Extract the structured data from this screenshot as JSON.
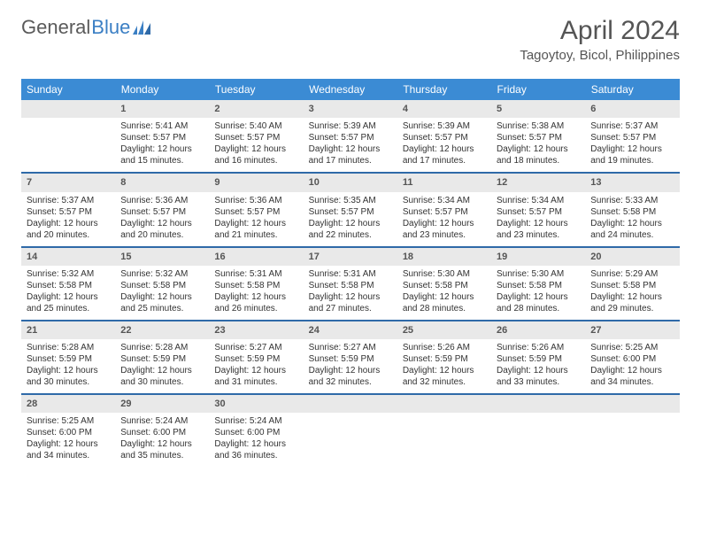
{
  "logo": {
    "text1": "General",
    "text2": "Blue"
  },
  "title": "April 2024",
  "location": "Tagoytoy, Bicol, Philippines",
  "colors": {
    "header_bg": "#3b8bd4",
    "header_text": "#ffffff",
    "row_border": "#2f6aa8",
    "daynum_bg": "#e9e9e9",
    "logo_blue": "#3b7fc4"
  },
  "weekdays": [
    "Sunday",
    "Monday",
    "Tuesday",
    "Wednesday",
    "Thursday",
    "Friday",
    "Saturday"
  ],
  "weeks": [
    [
      null,
      {
        "n": "1",
        "sr": "Sunrise: 5:41 AM",
        "ss": "Sunset: 5:57 PM",
        "d1": "Daylight: 12 hours",
        "d2": "and 15 minutes."
      },
      {
        "n": "2",
        "sr": "Sunrise: 5:40 AM",
        "ss": "Sunset: 5:57 PM",
        "d1": "Daylight: 12 hours",
        "d2": "and 16 minutes."
      },
      {
        "n": "3",
        "sr": "Sunrise: 5:39 AM",
        "ss": "Sunset: 5:57 PM",
        "d1": "Daylight: 12 hours",
        "d2": "and 17 minutes."
      },
      {
        "n": "4",
        "sr": "Sunrise: 5:39 AM",
        "ss": "Sunset: 5:57 PM",
        "d1": "Daylight: 12 hours",
        "d2": "and 17 minutes."
      },
      {
        "n": "5",
        "sr": "Sunrise: 5:38 AM",
        "ss": "Sunset: 5:57 PM",
        "d1": "Daylight: 12 hours",
        "d2": "and 18 minutes."
      },
      {
        "n": "6",
        "sr": "Sunrise: 5:37 AM",
        "ss": "Sunset: 5:57 PM",
        "d1": "Daylight: 12 hours",
        "d2": "and 19 minutes."
      }
    ],
    [
      {
        "n": "7",
        "sr": "Sunrise: 5:37 AM",
        "ss": "Sunset: 5:57 PM",
        "d1": "Daylight: 12 hours",
        "d2": "and 20 minutes."
      },
      {
        "n": "8",
        "sr": "Sunrise: 5:36 AM",
        "ss": "Sunset: 5:57 PM",
        "d1": "Daylight: 12 hours",
        "d2": "and 20 minutes."
      },
      {
        "n": "9",
        "sr": "Sunrise: 5:36 AM",
        "ss": "Sunset: 5:57 PM",
        "d1": "Daylight: 12 hours",
        "d2": "and 21 minutes."
      },
      {
        "n": "10",
        "sr": "Sunrise: 5:35 AM",
        "ss": "Sunset: 5:57 PM",
        "d1": "Daylight: 12 hours",
        "d2": "and 22 minutes."
      },
      {
        "n": "11",
        "sr": "Sunrise: 5:34 AM",
        "ss": "Sunset: 5:57 PM",
        "d1": "Daylight: 12 hours",
        "d2": "and 23 minutes."
      },
      {
        "n": "12",
        "sr": "Sunrise: 5:34 AM",
        "ss": "Sunset: 5:57 PM",
        "d1": "Daylight: 12 hours",
        "d2": "and 23 minutes."
      },
      {
        "n": "13",
        "sr": "Sunrise: 5:33 AM",
        "ss": "Sunset: 5:58 PM",
        "d1": "Daylight: 12 hours",
        "d2": "and 24 minutes."
      }
    ],
    [
      {
        "n": "14",
        "sr": "Sunrise: 5:32 AM",
        "ss": "Sunset: 5:58 PM",
        "d1": "Daylight: 12 hours",
        "d2": "and 25 minutes."
      },
      {
        "n": "15",
        "sr": "Sunrise: 5:32 AM",
        "ss": "Sunset: 5:58 PM",
        "d1": "Daylight: 12 hours",
        "d2": "and 25 minutes."
      },
      {
        "n": "16",
        "sr": "Sunrise: 5:31 AM",
        "ss": "Sunset: 5:58 PM",
        "d1": "Daylight: 12 hours",
        "d2": "and 26 minutes."
      },
      {
        "n": "17",
        "sr": "Sunrise: 5:31 AM",
        "ss": "Sunset: 5:58 PM",
        "d1": "Daylight: 12 hours",
        "d2": "and 27 minutes."
      },
      {
        "n": "18",
        "sr": "Sunrise: 5:30 AM",
        "ss": "Sunset: 5:58 PM",
        "d1": "Daylight: 12 hours",
        "d2": "and 28 minutes."
      },
      {
        "n": "19",
        "sr": "Sunrise: 5:30 AM",
        "ss": "Sunset: 5:58 PM",
        "d1": "Daylight: 12 hours",
        "d2": "and 28 minutes."
      },
      {
        "n": "20",
        "sr": "Sunrise: 5:29 AM",
        "ss": "Sunset: 5:58 PM",
        "d1": "Daylight: 12 hours",
        "d2": "and 29 minutes."
      }
    ],
    [
      {
        "n": "21",
        "sr": "Sunrise: 5:28 AM",
        "ss": "Sunset: 5:59 PM",
        "d1": "Daylight: 12 hours",
        "d2": "and 30 minutes."
      },
      {
        "n": "22",
        "sr": "Sunrise: 5:28 AM",
        "ss": "Sunset: 5:59 PM",
        "d1": "Daylight: 12 hours",
        "d2": "and 30 minutes."
      },
      {
        "n": "23",
        "sr": "Sunrise: 5:27 AM",
        "ss": "Sunset: 5:59 PM",
        "d1": "Daylight: 12 hours",
        "d2": "and 31 minutes."
      },
      {
        "n": "24",
        "sr": "Sunrise: 5:27 AM",
        "ss": "Sunset: 5:59 PM",
        "d1": "Daylight: 12 hours",
        "d2": "and 32 minutes."
      },
      {
        "n": "25",
        "sr": "Sunrise: 5:26 AM",
        "ss": "Sunset: 5:59 PM",
        "d1": "Daylight: 12 hours",
        "d2": "and 32 minutes."
      },
      {
        "n": "26",
        "sr": "Sunrise: 5:26 AM",
        "ss": "Sunset: 5:59 PM",
        "d1": "Daylight: 12 hours",
        "d2": "and 33 minutes."
      },
      {
        "n": "27",
        "sr": "Sunrise: 5:25 AM",
        "ss": "Sunset: 6:00 PM",
        "d1": "Daylight: 12 hours",
        "d2": "and 34 minutes."
      }
    ],
    [
      {
        "n": "28",
        "sr": "Sunrise: 5:25 AM",
        "ss": "Sunset: 6:00 PM",
        "d1": "Daylight: 12 hours",
        "d2": "and 34 minutes."
      },
      {
        "n": "29",
        "sr": "Sunrise: 5:24 AM",
        "ss": "Sunset: 6:00 PM",
        "d1": "Daylight: 12 hours",
        "d2": "and 35 minutes."
      },
      {
        "n": "30",
        "sr": "Sunrise: 5:24 AM",
        "ss": "Sunset: 6:00 PM",
        "d1": "Daylight: 12 hours",
        "d2": "and 36 minutes."
      },
      null,
      null,
      null,
      null
    ]
  ]
}
